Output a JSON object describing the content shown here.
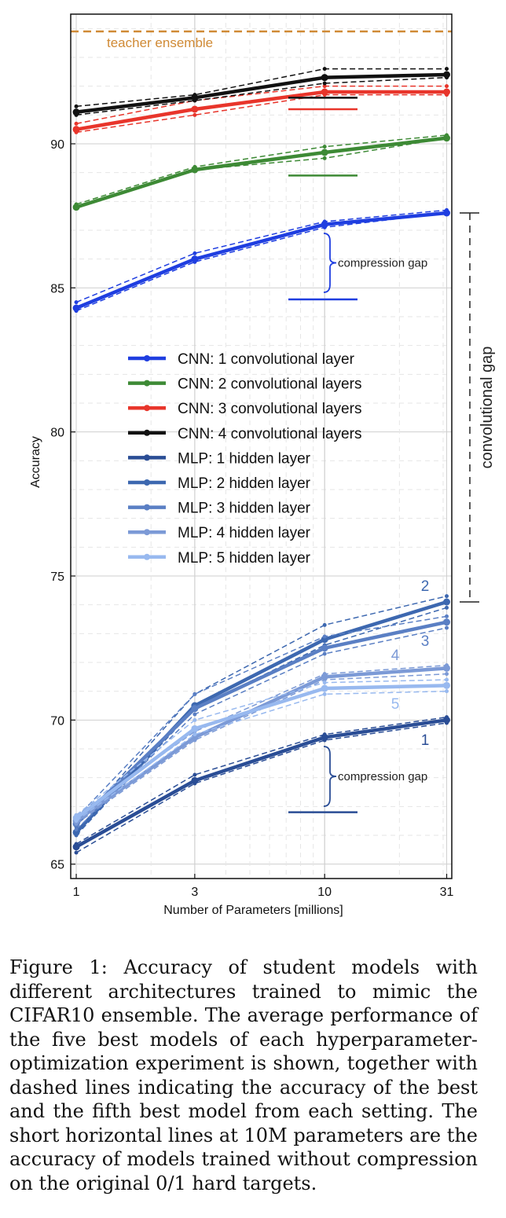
{
  "chart_data": {
    "type": "line",
    "xscale": "log",
    "xlabel": "Number of Parameters [millions]",
    "ylabel": "Accuracy",
    "xticks": [
      1,
      3,
      10,
      31
    ],
    "yticks": [
      65,
      70,
      75,
      80,
      85,
      90
    ],
    "xlim": [
      0.95,
      32.5
    ],
    "ylim": [
      64.5,
      94.5
    ],
    "grid": true,
    "legend_position": "center",
    "x": [
      1,
      3,
      10,
      31
    ],
    "series": [
      {
        "name": "CNN: 1 convolutional layer",
        "color": "#1f3ee0",
        "label_tag": "",
        "values": [
          84.3,
          86.0,
          87.2,
          87.6
        ],
        "upper": [
          84.5,
          86.2,
          87.3,
          87.7
        ],
        "lower": [
          84.2,
          85.9,
          87.1,
          87.6
        ]
      },
      {
        "name": "CNN: 2 convolutional layers",
        "color": "#3d8a35",
        "label_tag": "",
        "values": [
          87.8,
          89.1,
          89.7,
          90.2
        ],
        "upper": [
          87.9,
          89.2,
          89.9,
          90.3
        ],
        "lower": [
          87.8,
          89.1,
          89.5,
          90.2
        ]
      },
      {
        "name": "CNN: 3 convolutional layers",
        "color": "#e8352b",
        "label_tag": "",
        "values": [
          90.5,
          91.2,
          91.8,
          91.8
        ],
        "upper": [
          90.7,
          91.5,
          92.0,
          92.0
        ],
        "lower": [
          90.4,
          91.0,
          91.7,
          91.7
        ]
      },
      {
        "name": "CNN: 4 convolutional layers",
        "color": "#111111",
        "label_tag": "",
        "values": [
          91.1,
          91.6,
          92.3,
          92.4
        ],
        "upper": [
          91.3,
          91.7,
          92.6,
          92.6
        ],
        "lower": [
          91.0,
          91.5,
          92.1,
          92.3
        ]
      },
      {
        "name": "MLP: 1 hidden layer",
        "color": "#2a4d95",
        "label_tag": "1",
        "values": [
          65.6,
          67.9,
          69.4,
          70.0
        ],
        "upper": [
          65.7,
          68.1,
          69.5,
          70.1
        ],
        "lower": [
          65.4,
          67.8,
          69.3,
          69.9
        ]
      },
      {
        "name": "MLP: 2 hidden layer",
        "color": "#3d68b0",
        "label_tag": "2",
        "values": [
          66.1,
          70.5,
          72.8,
          74.1
        ],
        "upper": [
          66.3,
          70.9,
          73.3,
          74.3
        ],
        "lower": [
          66.0,
          70.4,
          72.6,
          73.9
        ]
      },
      {
        "name": "MLP: 3 hidden layer",
        "color": "#5a7fc4",
        "label_tag": "3",
        "values": [
          66.4,
          70.4,
          72.5,
          73.4
        ],
        "upper": [
          66.6,
          70.9,
          72.9,
          73.6
        ],
        "lower": [
          66.2,
          70.2,
          72.3,
          73.2
        ]
      },
      {
        "name": "MLP: 4 hidden layer",
        "color": "#7c9ad6",
        "label_tag": "4",
        "values": [
          66.5,
          69.4,
          71.5,
          71.8
        ],
        "upper": [
          66.7,
          69.6,
          71.6,
          71.9
        ],
        "lower": [
          66.4,
          69.3,
          71.4,
          71.6
        ]
      },
      {
        "name": "MLP: 5 hidden layer",
        "color": "#98b9ef",
        "label_tag": "5",
        "values": [
          66.6,
          69.7,
          71.1,
          71.2
        ],
        "upper": [
          66.7,
          70.0,
          71.3,
          71.4
        ],
        "lower": [
          66.5,
          69.5,
          70.9,
          71.0
        ]
      }
    ],
    "reference_lines": [
      {
        "label": "teacher ensemble",
        "value": 93.9,
        "color": "#d08a35"
      }
    ],
    "no_compression_marks": [
      {
        "color": "#111111",
        "value": 91.6
      },
      {
        "color": "#e8352b",
        "value": 91.2
      },
      {
        "color": "#3d8a35",
        "value": 88.9
      },
      {
        "color": "#1f3ee0",
        "value": 84.6
      },
      {
        "color": "#2a4d95",
        "value": 66.8
      }
    ],
    "annotations": {
      "compression_gap_label": "compression gap",
      "convolutional_gap_label": "convolutional gap"
    }
  },
  "caption": "Figure 1: Accuracy of student models with different architectures trained to mimic the CIFAR10 ensemble. The average performance of the five best models of each hyperparameter-optimization experiment is shown, together with dashed lines indicating the accuracy of the best and the fifth best model from each setting. The short horizontal lines at 10M parameters are the accuracy of models trained without compression on the original 0/1 hard targets."
}
